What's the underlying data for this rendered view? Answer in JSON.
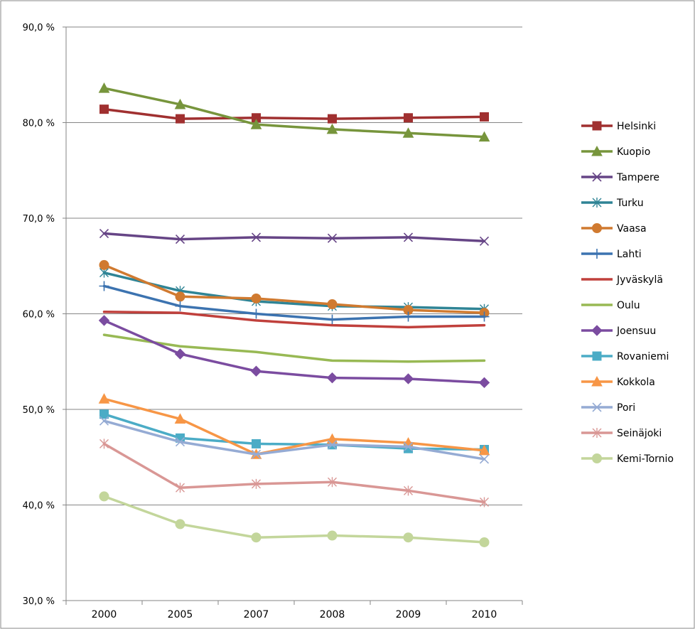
{
  "chart_data": {
    "type": "line",
    "categories": [
      "2000",
      "2005",
      "2007",
      "2008",
      "2009",
      "2010"
    ],
    "ylim": [
      30,
      90
    ],
    "yticks": [
      "30,0 %",
      "40,0 %",
      "50,0 %",
      "60,0 %",
      "70,0 %",
      "80,0 %",
      "90,0 %"
    ],
    "grid": true,
    "legend": "right",
    "series": [
      {
        "name": "Helsinki",
        "color": "#a03030",
        "marker": "square",
        "values": [
          81.4,
          80.4,
          80.5,
          80.4,
          80.5,
          80.6
        ]
      },
      {
        "name": "Kuopio",
        "color": "#77953c",
        "marker": "triangle",
        "values": [
          83.6,
          81.9,
          79.8,
          79.3,
          78.9,
          78.5
        ]
      },
      {
        "name": "Tampere",
        "color": "#664586",
        "marker": "x",
        "values": [
          68.4,
          67.8,
          68.0,
          67.9,
          68.0,
          67.6
        ]
      },
      {
        "name": "Turku",
        "color": "#2f8495",
        "marker": "star",
        "values": [
          64.3,
          62.4,
          61.3,
          60.8,
          60.7,
          60.5
        ]
      },
      {
        "name": "Vaasa",
        "color": "#d07a30",
        "marker": "circle",
        "values": [
          65.1,
          61.8,
          61.6,
          61.0,
          60.4,
          60.1
        ]
      },
      {
        "name": "Lahti",
        "color": "#3c73b0",
        "marker": "plus",
        "values": [
          62.9,
          60.8,
          60.0,
          59.4,
          59.7,
          59.7
        ]
      },
      {
        "name": "Jyväskylä",
        "color": "#c0403c",
        "marker": "none",
        "values": [
          60.2,
          60.1,
          59.3,
          58.8,
          58.6,
          58.8
        ]
      },
      {
        "name": "Oulu",
        "color": "#98b954",
        "marker": "none",
        "values": [
          57.8,
          56.6,
          56.0,
          55.1,
          55.0,
          55.1
        ]
      },
      {
        "name": "Joensuu",
        "color": "#7b4ca0",
        "marker": "diamond",
        "values": [
          59.3,
          55.8,
          54.0,
          53.3,
          53.2,
          52.8
        ]
      },
      {
        "name": "Rovaniemi",
        "color": "#4bacc6",
        "marker": "square",
        "values": [
          49.5,
          47.0,
          46.4,
          46.3,
          45.9,
          45.8
        ]
      },
      {
        "name": "Kokkola",
        "color": "#f79646",
        "marker": "triangle",
        "values": [
          51.1,
          49.0,
          45.3,
          46.9,
          46.5,
          45.7
        ]
      },
      {
        "name": "Pori",
        "color": "#95abd4",
        "marker": "x",
        "values": [
          48.8,
          46.6,
          45.3,
          46.3,
          46.1,
          44.8
        ]
      },
      {
        "name": "Seinäjoki",
        "color": "#d99795",
        "marker": "star",
        "values": [
          46.4,
          41.8,
          42.2,
          42.4,
          41.5,
          40.3
        ]
      },
      {
        "name": "Kemi-Tornio",
        "color": "#c3d69b",
        "marker": "circle",
        "values": [
          40.9,
          38.0,
          36.6,
          36.8,
          36.6,
          36.1
        ]
      }
    ]
  }
}
